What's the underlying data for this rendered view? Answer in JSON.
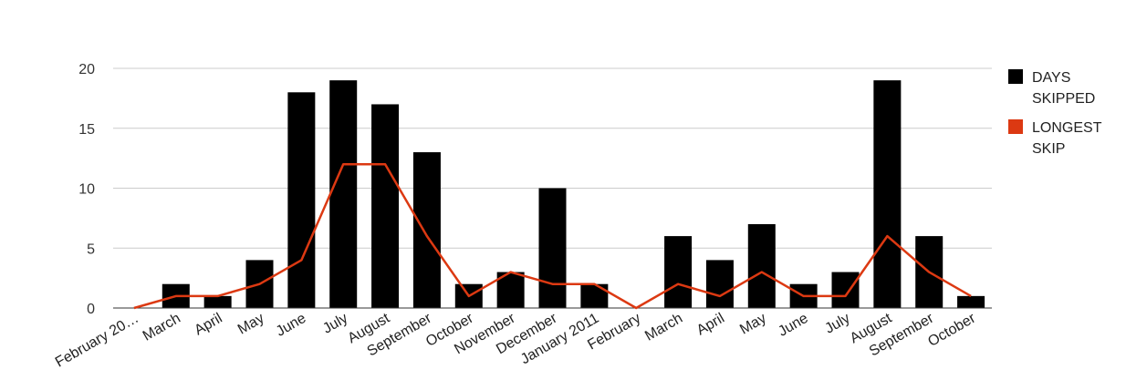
{
  "chart_data": {
    "type": "bar",
    "title": "",
    "xlabel": "",
    "ylabel": "",
    "ylim": [
      0,
      20
    ],
    "yticks": [
      0,
      5,
      10,
      15,
      20
    ],
    "grid": true,
    "legend_position": "right",
    "categories": [
      "February 20…",
      "March",
      "April",
      "May",
      "June",
      "July",
      "August",
      "September",
      "October",
      "November",
      "December",
      "January 2011",
      "February",
      "March",
      "April",
      "May",
      "June",
      "July",
      "August",
      "September",
      "October"
    ],
    "series": [
      {
        "name": "DAYS SKIPPED",
        "type": "bar",
        "color": "#000000",
        "values": [
          0,
          2,
          1,
          4,
          18,
          19,
          17,
          13,
          2,
          3,
          10,
          2,
          0,
          6,
          4,
          7,
          2,
          3,
          19,
          6,
          1
        ]
      },
      {
        "name": "LONGEST SKIP",
        "type": "line",
        "color": "#dc3912",
        "values": [
          0,
          1,
          1,
          2,
          4,
          12,
          12,
          6,
          1,
          3,
          2,
          2,
          0,
          2,
          1,
          3,
          1,
          1,
          6,
          3,
          1
        ]
      }
    ],
    "legend": [
      {
        "lines": [
          "DAYS",
          "SKIPPED"
        ],
        "color": "#000000"
      },
      {
        "lines": [
          "LONGEST",
          "SKIP"
        ],
        "color": "#dc3912"
      }
    ]
  }
}
